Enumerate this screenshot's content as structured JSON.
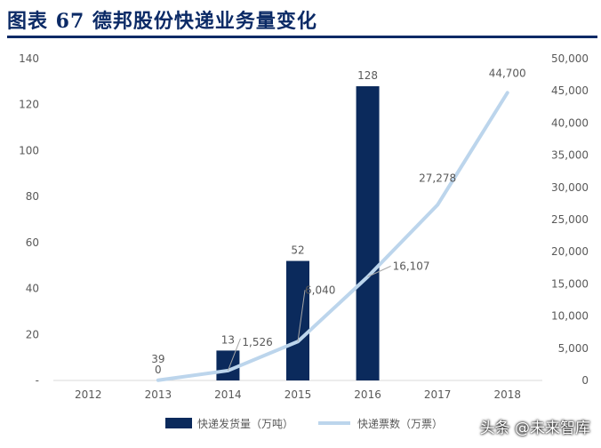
{
  "header": {
    "title": "图表 67   德邦股份快递业务量变化"
  },
  "watermark": "头条 @未来智库",
  "chart_data": {
    "type": "bar+line",
    "categories": [
      "2012",
      "2013",
      "2014",
      "2015",
      "2016",
      "2017",
      "2018"
    ],
    "series": [
      {
        "name": "快递发货量（万吨）",
        "type": "bar",
        "axis": "left",
        "color": "#0b2a5c",
        "values": [
          null,
          0,
          13,
          52,
          128,
          null,
          null
        ],
        "labels": [
          "",
          "0",
          "13",
          "52",
          "128",
          "",
          ""
        ]
      },
      {
        "name": "快递票数（万票）",
        "type": "line",
        "axis": "right",
        "color": "#bcd5ec",
        "values": [
          null,
          39,
          1526,
          6040,
          16107,
          27278,
          44700
        ],
        "labels": [
          "",
          "39",
          "1,526",
          "6,040",
          "16,107",
          "27,278",
          "44,700"
        ]
      }
    ],
    "left_axis": {
      "ylim": [
        0,
        140
      ],
      "ticks": [
        "-",
        "20",
        "40",
        "60",
        "80",
        "100",
        "120",
        "140"
      ]
    },
    "right_axis": {
      "ylim": [
        0,
        50000
      ],
      "ticks": [
        "0",
        "5,000",
        "10,000",
        "15,000",
        "20,000",
        "25,000",
        "30,000",
        "35,000",
        "40,000",
        "45,000",
        "50,000"
      ]
    },
    "grid": false,
    "legend": "bottom"
  }
}
